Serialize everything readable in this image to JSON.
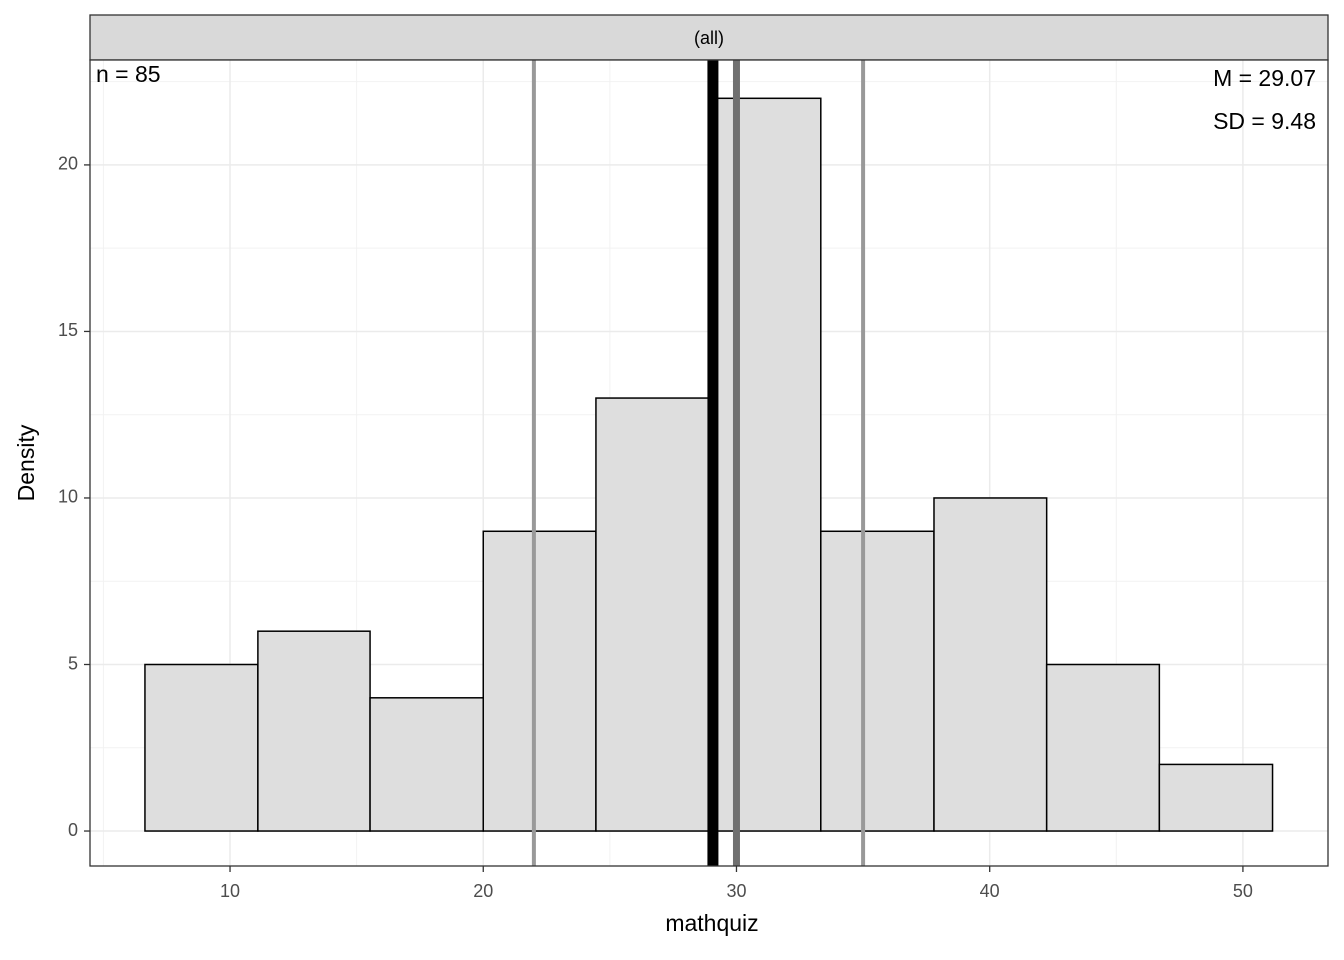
{
  "chart_data": {
    "type": "histogram",
    "strip_label": "(all)",
    "xlabel": "mathquiz",
    "ylabel": "Density",
    "annotations": {
      "n": "n = 85",
      "mean": "M = 29.07",
      "sd": "SD = 9.48"
    },
    "bins": [
      6.64,
      11.1,
      15.53,
      20,
      24.45,
      28.9,
      33.33,
      37.8,
      42.25,
      46.7,
      51.17
    ],
    "values": [
      5,
      6,
      4,
      9,
      13,
      22,
      9,
      10,
      5,
      2
    ],
    "color": "#dedede",
    "reference_lines": [
      {
        "value": 22,
        "color": "#999999",
        "width": 4
      },
      {
        "value": 35,
        "color": "#999999",
        "width": 4
      },
      {
        "value": 30,
        "color": "#707070",
        "width": 7
      },
      {
        "value": 29.07,
        "color": "#000000",
        "width": 11
      }
    ],
    "xlim": [
      4.47,
      53.36
    ],
    "xticks": [
      10,
      20,
      30,
      40,
      50
    ],
    "ylim": [
      -1.05,
      23.15
    ],
    "yticks": [
      0,
      5,
      10,
      15,
      20
    ],
    "grid": true
  }
}
